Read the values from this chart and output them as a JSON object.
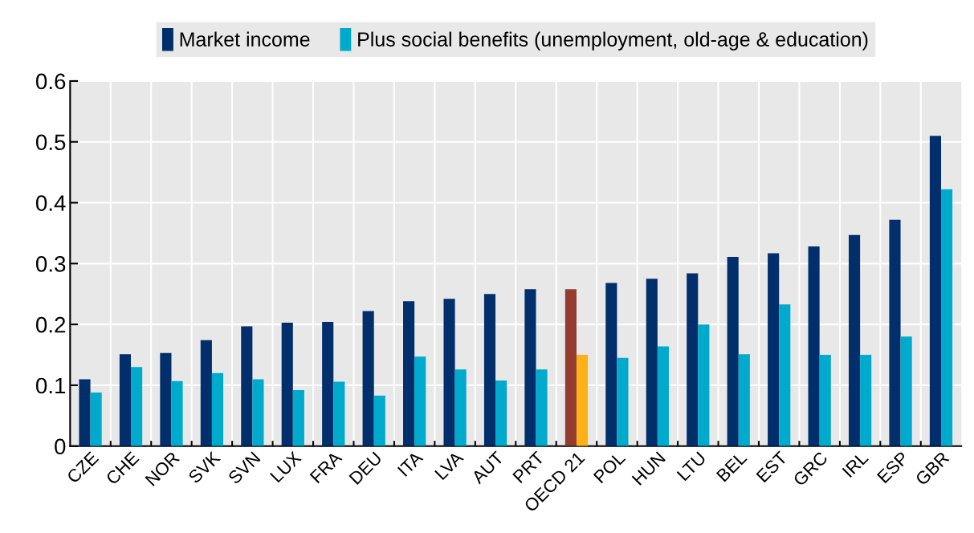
{
  "chart_data": {
    "type": "bar",
    "categories": [
      "CZE",
      "CHE",
      "NOR",
      "SVK",
      "SVN",
      "LUX",
      "FRA",
      "DEU",
      "ITA",
      "LVA",
      "AUT",
      "PRT",
      "OECD 21",
      "POL",
      "HUN",
      "LTU",
      "BEL",
      "EST",
      "GRC",
      "IRL",
      "ESP",
      "GBR"
    ],
    "series": [
      {
        "name": "Market income",
        "color": "#002f6c",
        "colors": [
          "#002f6c",
          "#002f6c",
          "#002f6c",
          "#002f6c",
          "#002f6c",
          "#002f6c",
          "#002f6c",
          "#002f6c",
          "#002f6c",
          "#002f6c",
          "#002f6c",
          "#002f6c",
          "#933c2f",
          "#002f6c",
          "#002f6c",
          "#002f6c",
          "#002f6c",
          "#002f6c",
          "#002f6c",
          "#002f6c",
          "#002f6c",
          "#002f6c"
        ],
        "values": [
          0.11,
          0.151,
          0.153,
          0.174,
          0.197,
          0.203,
          0.204,
          0.222,
          0.238,
          0.242,
          0.25,
          0.258,
          0.258,
          0.268,
          0.275,
          0.284,
          0.311,
          0.317,
          0.328,
          0.347,
          0.372,
          0.51
        ]
      },
      {
        "name": "Plus social benefits (unemployment, old-age & education)",
        "color": "#00aacc",
        "colors": [
          "#00aacc",
          "#00aacc",
          "#00aacc",
          "#00aacc",
          "#00aacc",
          "#00aacc",
          "#00aacc",
          "#00aacc",
          "#00aacc",
          "#00aacc",
          "#00aacc",
          "#00aacc",
          "#fbb117",
          "#00aacc",
          "#00aacc",
          "#00aacc",
          "#00aacc",
          "#00aacc",
          "#00aacc",
          "#00aacc",
          "#00aacc",
          "#00aacc"
        ],
        "values": [
          0.088,
          0.13,
          0.107,
          0.12,
          0.11,
          0.092,
          0.106,
          0.083,
          0.147,
          0.126,
          0.108,
          0.126,
          0.15,
          0.145,
          0.164,
          0.2,
          0.151,
          0.233,
          0.15,
          0.15,
          0.18,
          0.422
        ]
      }
    ],
    "ylim": [
      0,
      0.6
    ],
    "yticks": [
      {
        "value": 0,
        "label": "0"
      },
      0.1,
      0.2,
      0.3,
      0.4,
      0.5,
      0.6
    ],
    "grid": true,
    "legend": "top"
  }
}
